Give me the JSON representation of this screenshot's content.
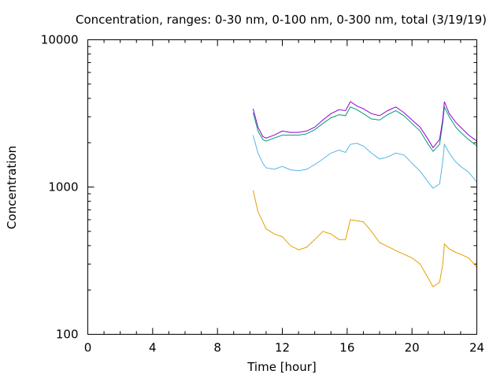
{
  "chart_data": {
    "type": "line",
    "title": "Concentration, ranges: 0-30 nm, 0-100 nm, 0-300 nm, total (3/19/19)",
    "xlabel": "Time [hour]",
    "ylabel": "Concentration",
    "xlim": [
      0,
      24
    ],
    "ylim": [
      100,
      10000
    ],
    "yscale": "log",
    "grid": false,
    "legend": "none",
    "x_ticks": [
      0,
      4,
      8,
      12,
      16,
      20,
      24
    ],
    "x_tick_labels": [
      "0",
      "4",
      "8",
      "12",
      "16",
      "20",
      "24"
    ],
    "y_ticks": [
      100,
      1000,
      10000
    ],
    "y_tick_labels": [
      "100",
      "1000",
      "10000"
    ],
    "series": [
      {
        "color": "#e69f00",
        "x": [
          10.2,
          10.5,
          10.8,
          11.0,
          11.5,
          12.0,
          12.5,
          13.0,
          13.5,
          14.0,
          14.5,
          15.0,
          15.5,
          15.9,
          16.2,
          16.6,
          17.0,
          17.5,
          18.0,
          18.5,
          19.0,
          19.5,
          20.0,
          20.5,
          21.0,
          21.3,
          21.7,
          21.9,
          22.0,
          22.3,
          22.7,
          23.0,
          23.5,
          24.0
        ],
        "values": [
          950,
          680,
          580,
          520,
          480,
          460,
          400,
          375,
          390,
          440,
          500,
          480,
          440,
          440,
          600,
          590,
          580,
          500,
          420,
          395,
          370,
          350,
          330,
          300,
          240,
          210,
          225,
          300,
          410,
          380,
          360,
          350,
          330,
          285
        ]
      },
      {
        "color": "#56b4e9",
        "x": [
          10.2,
          10.5,
          10.8,
          11.0,
          11.5,
          12.0,
          12.5,
          13.0,
          13.5,
          14.0,
          14.5,
          15.0,
          15.5,
          15.9,
          16.2,
          16.6,
          17.0,
          17.5,
          18.0,
          18.5,
          19.0,
          19.5,
          20.0,
          20.5,
          21.0,
          21.3,
          21.7,
          21.9,
          22.0,
          22.3,
          22.7,
          23.0,
          23.5,
          24.0
        ],
        "values": [
          2250,
          1700,
          1450,
          1350,
          1320,
          1380,
          1310,
          1290,
          1320,
          1420,
          1550,
          1700,
          1780,
          1720,
          1950,
          1980,
          1900,
          1700,
          1550,
          1600,
          1700,
          1650,
          1450,
          1280,
          1080,
          980,
          1050,
          1500,
          1950,
          1700,
          1480,
          1380,
          1260,
          1080
        ]
      },
      {
        "color": "#009e73",
        "x": [
          10.2,
          10.5,
          10.8,
          11.0,
          11.5,
          12.0,
          12.5,
          13.0,
          13.5,
          14.0,
          14.5,
          15.0,
          15.5,
          15.9,
          16.2,
          16.6,
          17.0,
          17.5,
          18.0,
          18.5,
          19.0,
          19.5,
          20.0,
          20.5,
          21.0,
          21.3,
          21.7,
          21.9,
          22.0,
          22.3,
          22.7,
          23.0,
          23.5,
          24.0
        ],
        "values": [
          3200,
          2400,
          2100,
          2050,
          2150,
          2250,
          2250,
          2250,
          2300,
          2450,
          2700,
          2950,
          3100,
          3050,
          3500,
          3350,
          3150,
          2900,
          2850,
          3100,
          3300,
          3050,
          2700,
          2400,
          1950,
          1750,
          1950,
          2750,
          3500,
          3000,
          2550,
          2350,
          2100,
          1900
        ]
      },
      {
        "color": "#9400d3",
        "x": [
          10.2,
          10.5,
          10.8,
          11.0,
          11.5,
          12.0,
          12.5,
          13.0,
          13.5,
          14.0,
          14.5,
          15.0,
          15.5,
          15.9,
          16.2,
          16.6,
          17.0,
          17.5,
          18.0,
          18.5,
          19.0,
          19.5,
          20.0,
          20.5,
          21.0,
          21.3,
          21.7,
          21.9,
          22.0,
          22.3,
          22.7,
          23.0,
          23.5,
          24.0
        ],
        "values": [
          3400,
          2550,
          2200,
          2150,
          2250,
          2400,
          2350,
          2350,
          2400,
          2550,
          2850,
          3150,
          3350,
          3300,
          3800,
          3550,
          3400,
          3150,
          3050,
          3300,
          3500,
          3200,
          2850,
          2550,
          2100,
          1850,
          2100,
          2900,
          3800,
          3150,
          2750,
          2550,
          2250,
          2050
        ]
      }
    ]
  }
}
